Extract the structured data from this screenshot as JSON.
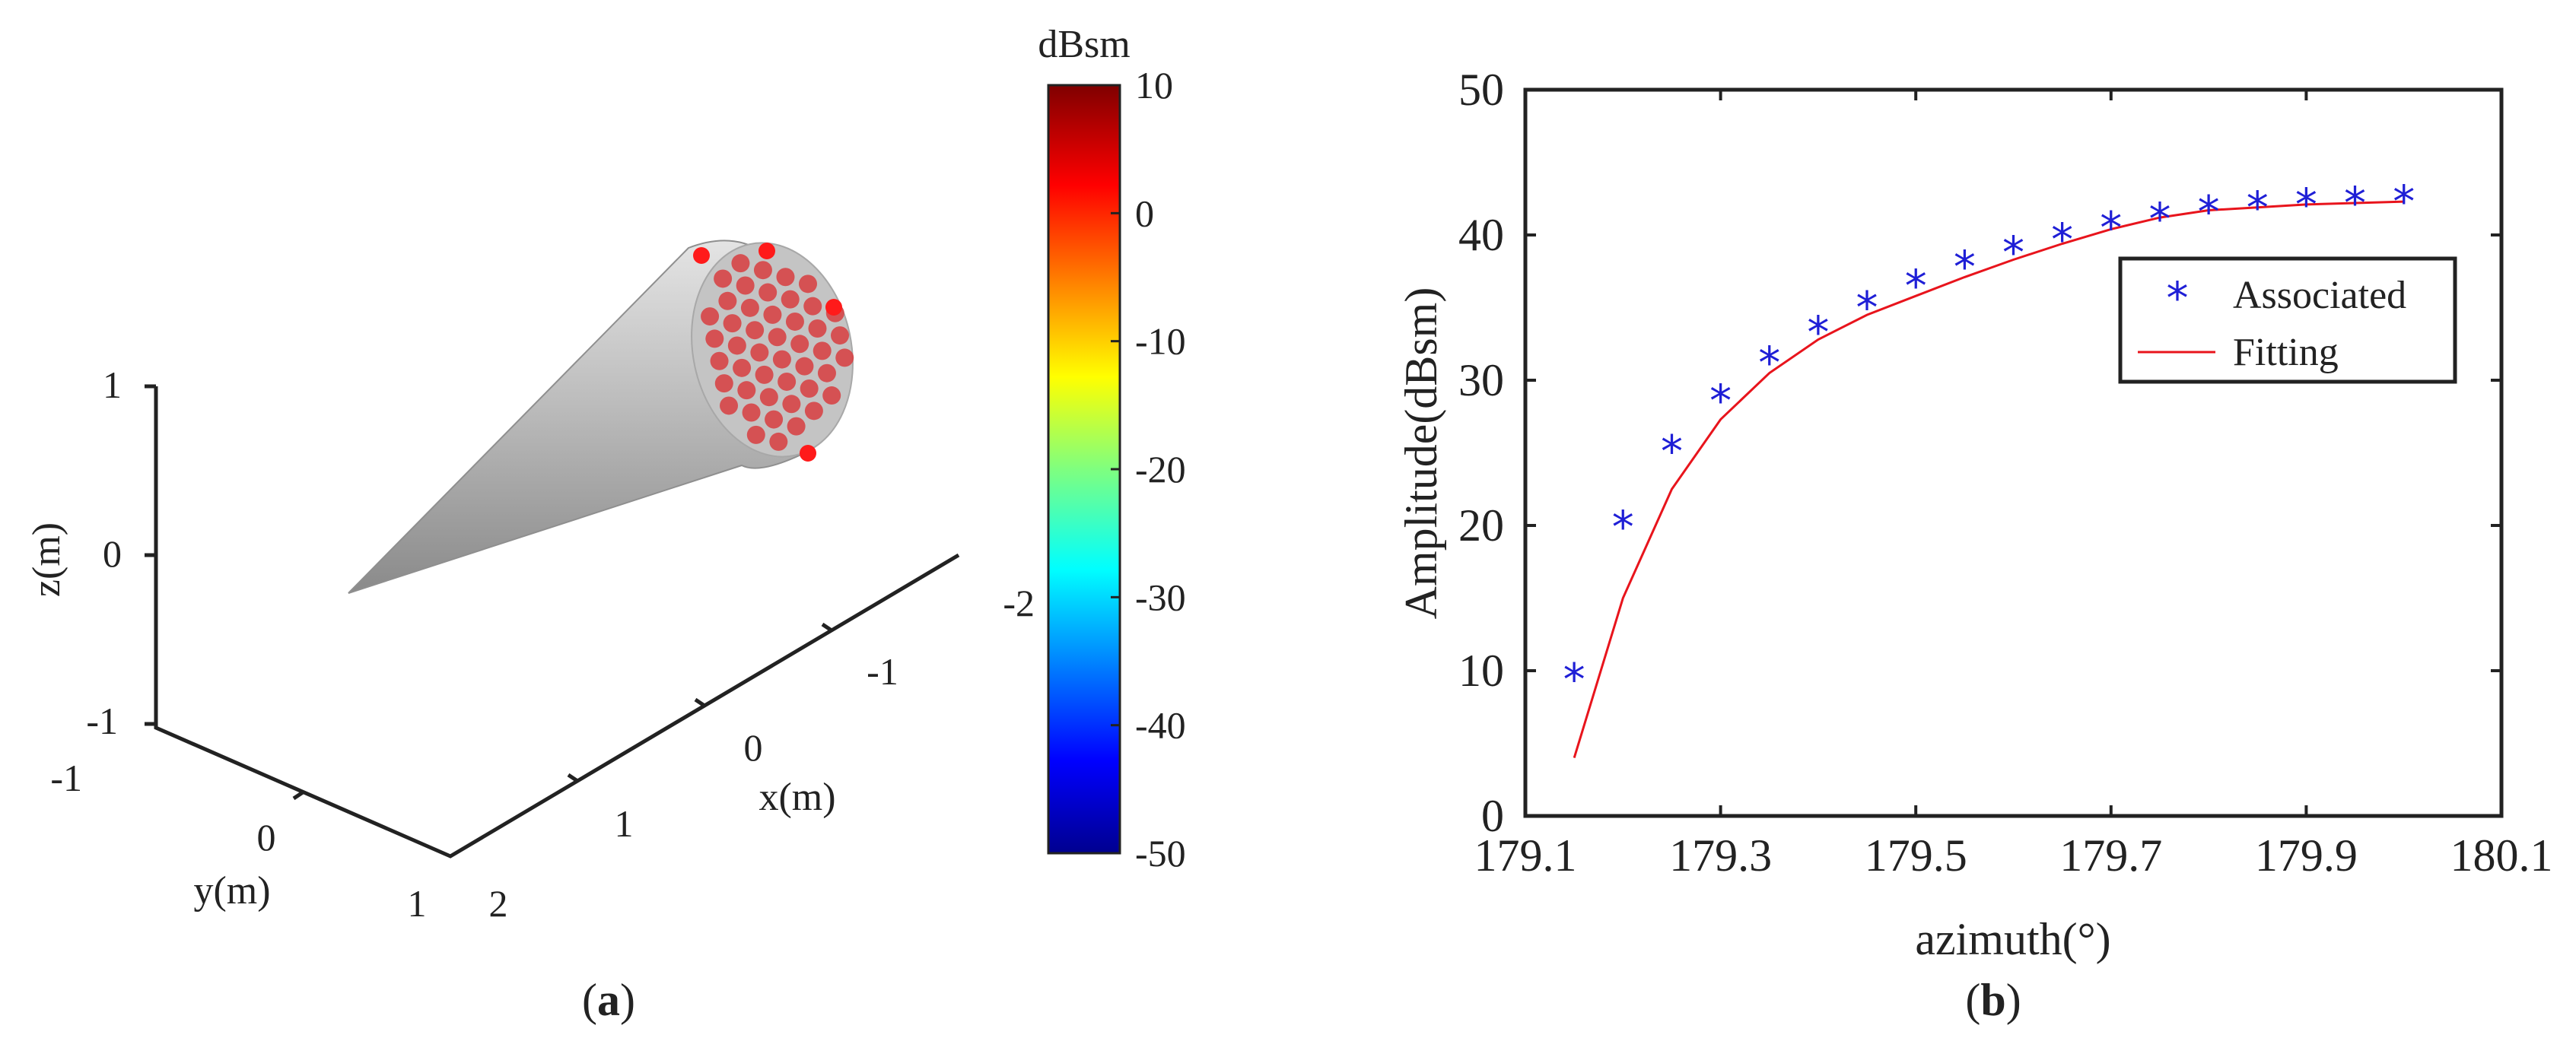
{
  "chart_data": [
    {
      "type": "3d-scatter",
      "panel_label_pre": "(",
      "panel_label_letter": "a",
      "panel_label_post": ")",
      "xlabel": "x(m)",
      "ylabel": "y(m)",
      "zlabel": "z(m)",
      "x_ticks": [
        "-2",
        "-1",
        "0",
        "1",
        "2"
      ],
      "y_ticks": [
        "-1",
        "0",
        "1"
      ],
      "z_ticks": [
        "1",
        "0",
        "-1"
      ],
      "object": "cone",
      "colorbar": {
        "title": "dBsm",
        "range": [
          -50,
          10
        ],
        "ticks": [
          "10",
          "0",
          "-10",
          "-20",
          "-30",
          "-40",
          "-50"
        ]
      }
    },
    {
      "type": "scatter+line",
      "panel_label_pre": "(",
      "panel_label_letter": "b",
      "panel_label_post": ")",
      "xlabel": "azimuth(°)",
      "ylabel": "Amplitude(dBsm)",
      "xlim": [
        179.1,
        180.1
      ],
      "ylim": [
        0,
        50
      ],
      "x_ticks": [
        "179.1",
        "179.3",
        "179.5",
        "179.7",
        "179.9",
        "180.1"
      ],
      "y_ticks": [
        "0",
        "10",
        "20",
        "30",
        "40",
        "50"
      ],
      "series": [
        {
          "name": "Associated",
          "marker": "*",
          "color": "#1f1fd6",
          "x": [
            179.15,
            179.2,
            179.25,
            179.3,
            179.35,
            179.4,
            179.45,
            179.5,
            179.55,
            179.6,
            179.65,
            179.7,
            179.75,
            179.8,
            179.85,
            179.9,
            179.95,
            180.0
          ],
          "y": [
            9.5,
            20.0,
            25.2,
            28.7,
            31.3,
            33.4,
            35.1,
            36.6,
            37.9,
            38.9,
            39.8,
            40.6,
            41.2,
            41.7,
            42.0,
            42.2,
            42.3,
            42.4
          ]
        },
        {
          "name": "Fitting",
          "marker": "line",
          "color": "#e8141c",
          "x": [
            179.15,
            179.2,
            179.25,
            179.3,
            179.35,
            179.4,
            179.45,
            179.5,
            179.55,
            179.6,
            179.65,
            179.7,
            179.75,
            179.8,
            179.85,
            179.9,
            179.95,
            180.0
          ],
          "y": [
            4.0,
            15.0,
            22.5,
            27.3,
            30.5,
            32.8,
            34.5,
            35.8,
            37.1,
            38.3,
            39.4,
            40.4,
            41.2,
            41.7,
            41.9,
            42.1,
            42.2,
            42.3
          ]
        }
      ]
    }
  ]
}
